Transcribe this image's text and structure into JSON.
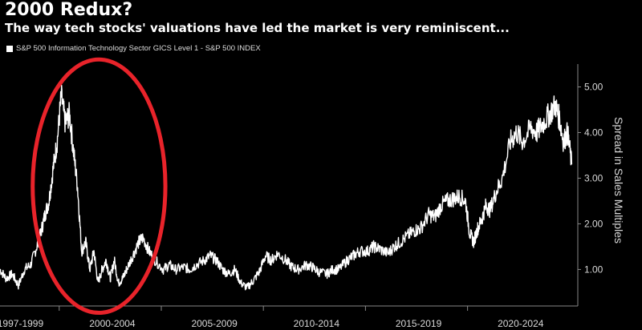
{
  "header": {
    "title": "2000 Redux?",
    "subtitle": "The way tech stocks' valuations have led the market is very reminiscent..."
  },
  "colors": {
    "line": "#ffffff",
    "annotation": "#e8232a",
    "background": "#000000"
  },
  "chart_data": {
    "type": "line",
    "title": "2000 Redux?",
    "subtitle": "The way tech stocks' valuations have led the market is very reminiscent...",
    "legend": "S&P 500 Information Technology Sector GICS Level 1 - S&P 500 INDEX",
    "ylabel": "Spread in Sales Multiples",
    "ylim": [
      0.2,
      5.5
    ],
    "yticks": [
      "5.00",
      "4.00",
      "3.00",
      "2.00",
      "1.00"
    ],
    "yticks_values": [
      5,
      4,
      3,
      2,
      1
    ],
    "xlim": [
      1997.0,
      2025.3
    ],
    "xtick_labels": [
      "1997-1999",
      "2000-2004",
      "2005-2009",
      "2010-2014",
      "2015-2019",
      "2020-2024"
    ],
    "xtick_centers": [
      1998.0,
      2002.5,
      2007.5,
      2012.5,
      2017.5,
      2022.5
    ],
    "xtick_separators": [
      1999.9,
      2004.9,
      2009.9,
      2014.9,
      2019.9
    ],
    "annotation": {
      "type": "ellipse",
      "label": "highlight 1999-2004",
      "x_range": [
        1998.6,
        2005.1
      ],
      "y_range": [
        0.05,
        5.6
      ]
    },
    "series": [
      {
        "name": "S&P 500 Information Technology Sector GICS Level 1 - S&P 500 INDEX",
        "x": [
          1997.0,
          1997.3,
          1997.6,
          1997.9,
          1998.2,
          1998.5,
          1998.8,
          1999.0,
          1999.2,
          1999.4,
          1999.6,
          1999.8,
          2000.0,
          2000.2,
          2000.4,
          2000.6,
          2000.8,
          2001.0,
          2001.2,
          2001.4,
          2001.6,
          2001.8,
          2002.0,
          2002.2,
          2002.4,
          2002.6,
          2002.8,
          2003.0,
          2003.2,
          2003.5,
          2003.8,
          2004.0,
          2004.3,
          2004.6,
          2005.0,
          2005.3,
          2005.6,
          2006.0,
          2006.3,
          2006.6,
          2007.0,
          2007.3,
          2007.6,
          2007.9,
          2008.2,
          2008.5,
          2008.8,
          2009.1,
          2009.4,
          2009.7,
          2010.0,
          2010.3,
          2010.6,
          2011.0,
          2011.3,
          2011.6,
          2012.0,
          2012.3,
          2012.6,
          2013.0,
          2013.3,
          2013.6,
          2014.0,
          2014.3,
          2014.6,
          2015.0,
          2015.3,
          2015.6,
          2016.0,
          2016.3,
          2016.6,
          2017.0,
          2017.3,
          2017.6,
          2018.0,
          2018.3,
          2018.6,
          2018.9,
          2019.2,
          2019.5,
          2019.8,
          2020.0,
          2020.2,
          2020.4,
          2020.6,
          2020.8,
          2021.0,
          2021.3,
          2021.6,
          2022.0,
          2022.3,
          2022.6,
          2023.0,
          2023.3,
          2023.6,
          2023.9,
          2024.2,
          2024.4,
          2024.6,
          2024.8,
          2025.0
        ],
        "values": [
          1.0,
          0.8,
          0.9,
          0.65,
          1.0,
          1.1,
          1.5,
          1.8,
          2.2,
          2.5,
          3.2,
          3.8,
          4.8,
          4.2,
          4.4,
          3.6,
          2.8,
          1.4,
          1.6,
          1.0,
          1.4,
          0.7,
          1.0,
          1.2,
          0.8,
          1.2,
          0.7,
          0.8,
          1.0,
          1.3,
          1.6,
          1.7,
          1.4,
          1.2,
          1.0,
          1.1,
          1.0,
          1.05,
          1.0,
          1.1,
          1.2,
          1.3,
          1.2,
          1.0,
          0.9,
          1.0,
          0.7,
          0.6,
          0.75,
          0.95,
          1.3,
          1.2,
          1.35,
          1.2,
          1.05,
          1.0,
          1.1,
          1.05,
          0.95,
          0.9,
          1.0,
          1.0,
          1.2,
          1.3,
          1.4,
          1.4,
          1.5,
          1.45,
          1.35,
          1.5,
          1.6,
          1.75,
          1.85,
          1.9,
          2.2,
          2.15,
          2.4,
          2.5,
          2.55,
          2.6,
          2.5,
          1.8,
          1.6,
          1.9,
          2.1,
          2.4,
          2.3,
          2.7,
          3.0,
          3.8,
          4.0,
          3.8,
          4.1,
          4.0,
          4.2,
          4.4,
          4.6,
          4.3,
          3.8,
          4.0,
          3.3
        ]
      }
    ]
  }
}
